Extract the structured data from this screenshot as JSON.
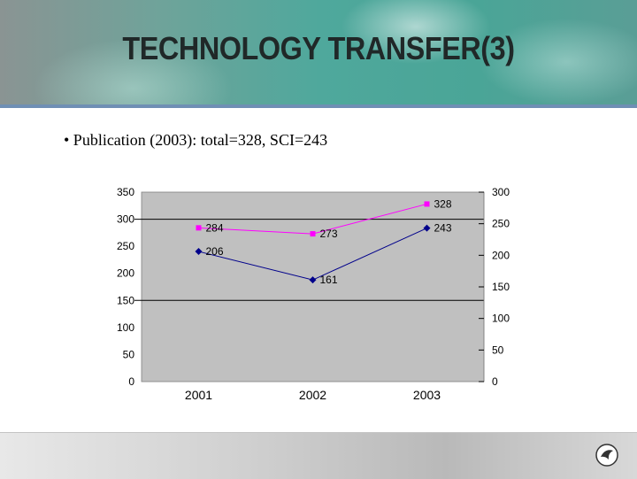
{
  "slide": {
    "title": "TECHNOLOGY TRANSFER(3)",
    "bullet": "• Publication (2003): total=328, SCI=243"
  },
  "colors": {
    "total": "#ff00ff",
    "sci": "#00008b",
    "plot_bg": "#c0c0c0"
  },
  "chart_data": {
    "type": "line",
    "categories": [
      "2001",
      "2002",
      "2003"
    ],
    "series": [
      {
        "values": [
          284,
          273,
          328
        ],
        "axis": "left",
        "marker": "square",
        "color": "#ff00ff"
      },
      {
        "values": [
          206,
          161,
          243
        ],
        "axis": "right",
        "marker": "diamond",
        "color": "#00008b"
      }
    ],
    "y_left": {
      "min": 0,
      "max": 350,
      "ticks": [
        0,
        50,
        100,
        150,
        200,
        250,
        300,
        350
      ]
    },
    "y_right": {
      "min": 0,
      "max": 300,
      "ticks": [
        0,
        50,
        100,
        150,
        200,
        250,
        300
      ]
    },
    "gridlines": [
      150,
      300
    ],
    "legend": "none"
  }
}
